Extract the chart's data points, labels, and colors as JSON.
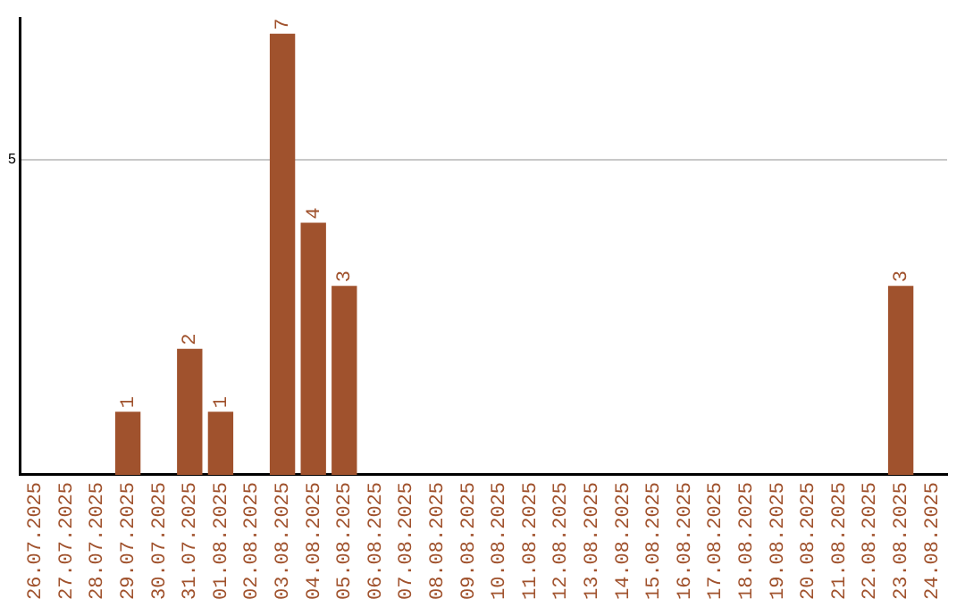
{
  "chart_data": {
    "type": "bar",
    "categories": [
      "26.07.2025",
      "27.07.2025",
      "28.07.2025",
      "29.07.2025",
      "30.07.2025",
      "31.07.2025",
      "01.08.2025",
      "02.08.2025",
      "03.08.2025",
      "04.08.2025",
      "05.08.2025",
      "06.08.2025",
      "07.08.2025",
      "08.08.2025",
      "09.08.2025",
      "10.08.2025",
      "11.08.2025",
      "12.08.2025",
      "13.08.2025",
      "14.08.2025",
      "15.08.2025",
      "16.08.2025",
      "17.08.2025",
      "18.08.2025",
      "19.08.2025",
      "20.08.2025",
      "21.08.2025",
      "22.08.2025",
      "23.08.2025",
      "24.08.2025"
    ],
    "values": [
      null,
      null,
      null,
      1,
      null,
      2,
      1,
      null,
      7,
      4,
      3,
      null,
      null,
      null,
      null,
      null,
      null,
      null,
      null,
      null,
      null,
      null,
      null,
      null,
      null,
      null,
      null,
      null,
      3,
      null
    ],
    "color": "#a0522d",
    "ylim": [
      0,
      7.25
    ],
    "yticks": [
      5
    ],
    "grid": "y",
    "legend": false,
    "data_labels": true
  }
}
